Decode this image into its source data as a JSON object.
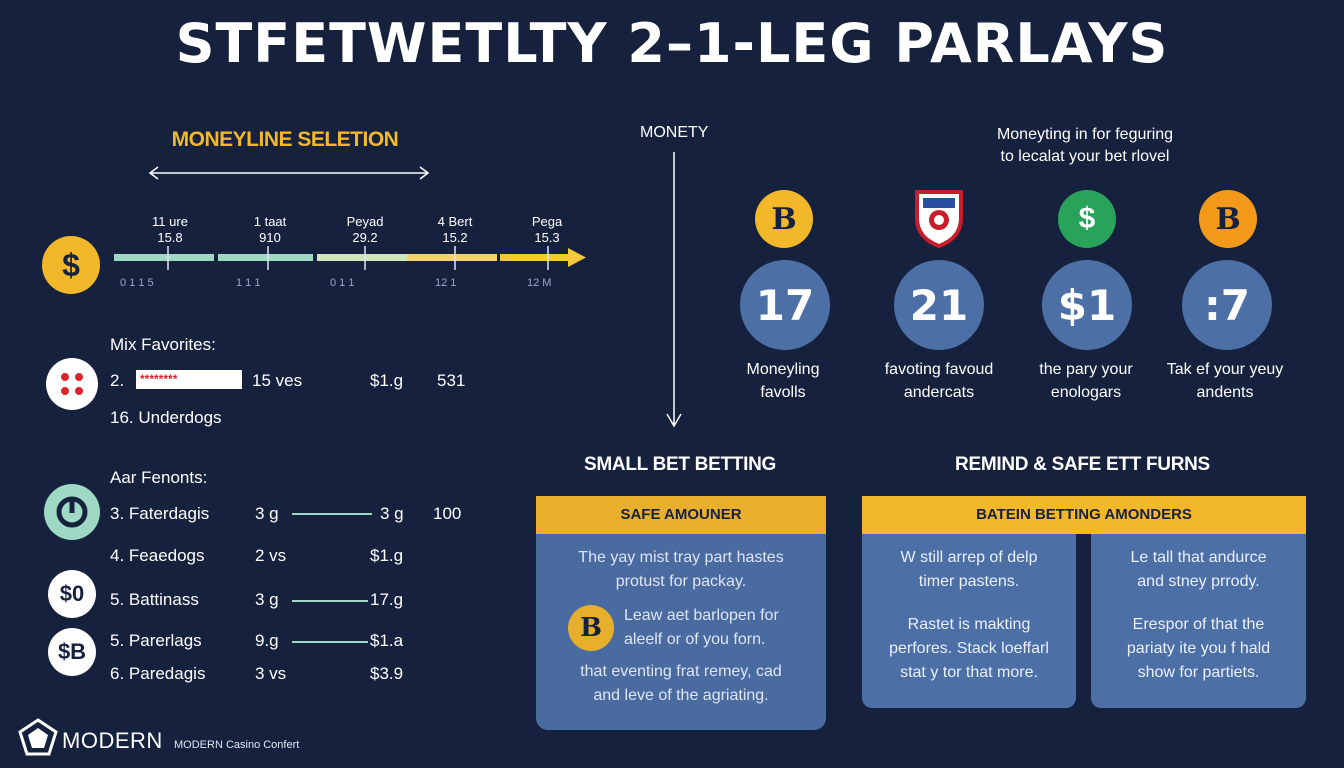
{
  "title": "STFETWETLTY 2–1-LEG PARLAYS",
  "moneyline": {
    "title": "MONEYLINE SELETION",
    "coin": "$",
    "points": [
      {
        "label": "11 ure",
        "value": "15.8"
      },
      {
        "label": "1 taat",
        "value": "910"
      },
      {
        "label": "Peyad",
        "value": "29.2"
      },
      {
        "label": "4 Bert",
        "value": "15.2"
      },
      {
        "label": "Pega",
        "value": "15.3"
      }
    ],
    "ticks": [
      "0  1  1  5",
      "1  1  1",
      "0  1  1",
      "12  1",
      "12  M"
    ]
  },
  "favorites": {
    "heading": "Mix Favorites:",
    "row1": {
      "num": "2.",
      "stars": "********",
      "col2": "15 ves",
      "col3": "$1.g",
      "col4": "531"
    },
    "row2": "16. Underdogs"
  },
  "fenonts": {
    "heading": "Aar Fenonts:",
    "rows": [
      {
        "label": "3. Faterdagis",
        "c1": "3 g",
        "c2": "3 g",
        "c3": "100"
      },
      {
        "label": "4. Feaedogs",
        "c1": "2 vs",
        "c2": "$1.g",
        "c3": ""
      },
      {
        "label": "5. Battinass",
        "c1": "3 g",
        "c2": "17.g",
        "c3": ""
      },
      {
        "label": "5. Parerlags",
        "c1": "9.g",
        "c2": "$1.a",
        "c3": ""
      },
      {
        "label": "6. Paredagis",
        "c1": "3 vs",
        "c2": "$3.9",
        "c3": ""
      }
    ],
    "icon_labels": [
      "$0",
      "$B"
    ]
  },
  "divider_label": "MONETY",
  "right_intro": [
    "Moneyting in for feguring",
    "to lecalat your bet rlovel"
  ],
  "stats": [
    {
      "icon": "B",
      "number": "17",
      "caption": [
        "Moneyling",
        "favolls"
      ]
    },
    {
      "icon": "",
      "number": "21",
      "caption": [
        "favoting favoud",
        "andercats"
      ]
    },
    {
      "icon": "$",
      "number": "$1",
      "caption": [
        "the pary your",
        "enologars"
      ]
    },
    {
      "icon": "B",
      "number": ":7",
      "caption": [
        "Tak ef your yeuy",
        "andents"
      ]
    }
  ],
  "small_bet": {
    "title": "SMALL BET BETTING",
    "header": "SAFE AMOUNER",
    "text1": [
      "The yay mist tray part hastes",
      "protust for packay."
    ],
    "coin": "B",
    "text2": [
      "Leaw aet barlopen for",
      "aleelf or of you forn."
    ],
    "text3": [
      "that eventing frat remey, cad",
      "and leve of the agriating."
    ]
  },
  "remind": {
    "title": "REMIND & SAFE ETT FURNS",
    "header": "BATEIN BETTING AMONDERS",
    "left": [
      "W still arrep of delp",
      "timer pastens.",
      "",
      "Rastet is makting",
      "perfores. Stack loeffarl",
      "stat y tor that more."
    ],
    "right": [
      "Le tall that andurce",
      "and stney prrody.",
      "",
      "Erespor of that the",
      "pariaty ite you f hald",
      "show for partiets."
    ]
  },
  "footer": {
    "brand": "MODERN",
    "sub": "MODERN Casino Confert"
  },
  "colors": {
    "background": "#16213e",
    "accent": "#f3b72a",
    "card": "#4c6fa6",
    "teal": "#9fd8c5"
  }
}
